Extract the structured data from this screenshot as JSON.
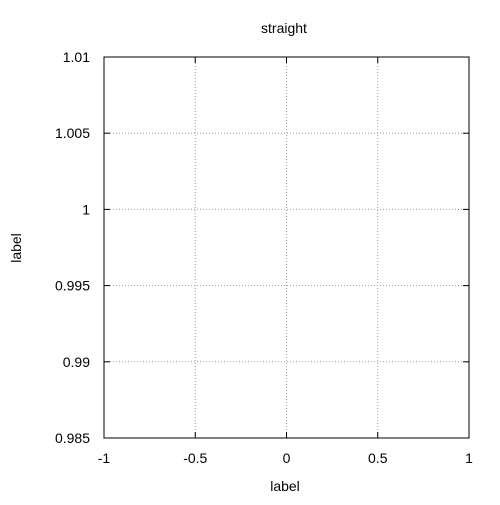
{
  "chart_data": {
    "type": "line",
    "title": "straight",
    "xlabel": "label",
    "ylabel": "label",
    "xlim": [
      -1,
      1
    ],
    "ylim": [
      0.985,
      1.01
    ],
    "x_ticks": [
      -1,
      -0.5,
      0,
      0.5,
      1
    ],
    "x_tick_labels": [
      "-1",
      "-0.5",
      "0",
      "0.5",
      "1"
    ],
    "y_ticks": [
      0.985,
      0.99,
      0.995,
      1,
      1.005,
      1.01
    ],
    "y_tick_labels": [
      "0.985",
      "0.99",
      "0.995",
      "1",
      "1.005",
      "1.01"
    ],
    "grid": true,
    "series": [],
    "colors": {
      "axis": "#000000",
      "grid": "#a0a0a0",
      "background": "#ffffff"
    }
  }
}
